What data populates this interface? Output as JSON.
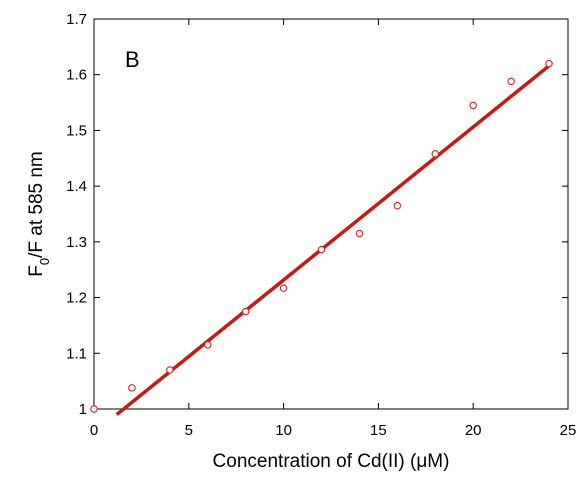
{
  "chart_data": {
    "type": "scatter",
    "panel_label": "B",
    "xlabel": "Concentration of Cd(II) (μM)",
    "ylabel_parts": {
      "main": "F",
      "subscript": "0",
      "rest": "/F at 585 nm"
    },
    "xlim": [
      0,
      25
    ],
    "ylim": [
      1,
      1.7
    ],
    "x_ticks": [
      0,
      5,
      10,
      15,
      20,
      25
    ],
    "x_tick_labels": [
      "0",
      "5",
      "10",
      "15",
      "20",
      "25"
    ],
    "y_ticks": [
      1,
      1.1,
      1.2,
      1.3,
      1.4,
      1.5,
      1.6,
      1.7
    ],
    "y_tick_labels": [
      "1",
      "1.1",
      "1.2",
      "1.3",
      "1.4",
      "1.5",
      "1.6",
      "1.7"
    ],
    "grid": false,
    "series": [
      {
        "points": [
          {
            "x": 0,
            "y": 1.0
          },
          {
            "x": 2,
            "y": 1.038
          },
          {
            "x": 4,
            "y": 1.07
          },
          {
            "x": 6,
            "y": 1.115
          },
          {
            "x": 8,
            "y": 1.175
          },
          {
            "x": 10,
            "y": 1.217
          },
          {
            "x": 12,
            "y": 1.286
          },
          {
            "x": 14,
            "y": 1.315
          },
          {
            "x": 16,
            "y": 1.365
          },
          {
            "x": 18,
            "y": 1.458
          },
          {
            "x": 20,
            "y": 1.545
          },
          {
            "x": 22,
            "y": 1.588
          },
          {
            "x": 24,
            "y": 1.62
          }
        ],
        "marker": "open-circle",
        "color": "#d42020"
      }
    ],
    "fit_line": {
      "x": [
        1.2,
        24
      ],
      "y": [
        0.99,
        1.616
      ],
      "color": "#cc1515"
    }
  }
}
